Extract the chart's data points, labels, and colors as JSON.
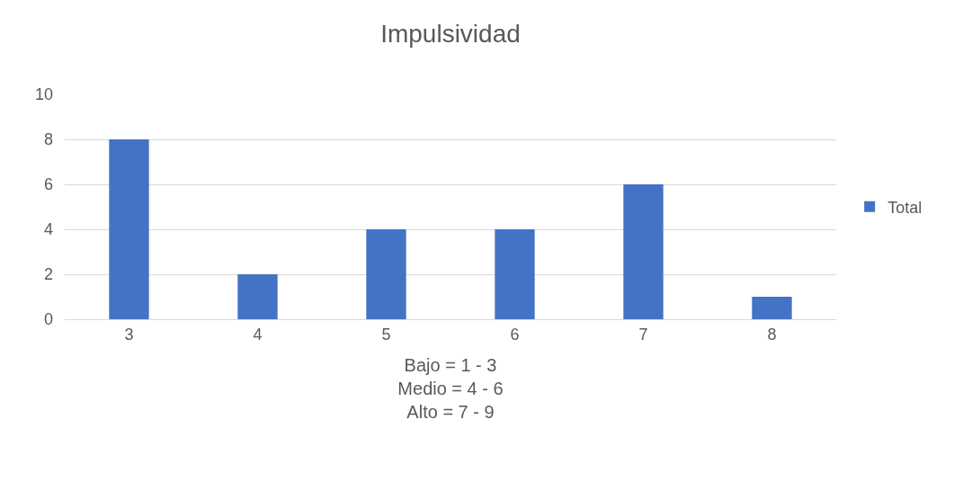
{
  "chart_data": {
    "type": "bar",
    "title": "Impulsividad",
    "xlabel": "Bajo = 1 - 3\nMedio = 4 - 6\nAlto = 7 - 9",
    "categories": [
      "3",
      "4",
      "5",
      "6",
      "7",
      "8"
    ],
    "series": [
      {
        "name": "Total",
        "color": "#4472c4",
        "values": [
          8,
          2,
          4,
          4,
          6,
          1
        ]
      }
    ],
    "ylim": [
      0,
      10
    ],
    "yticks": [
      0,
      2,
      4,
      6,
      8,
      10
    ],
    "grid": "y",
    "legend": "right"
  }
}
